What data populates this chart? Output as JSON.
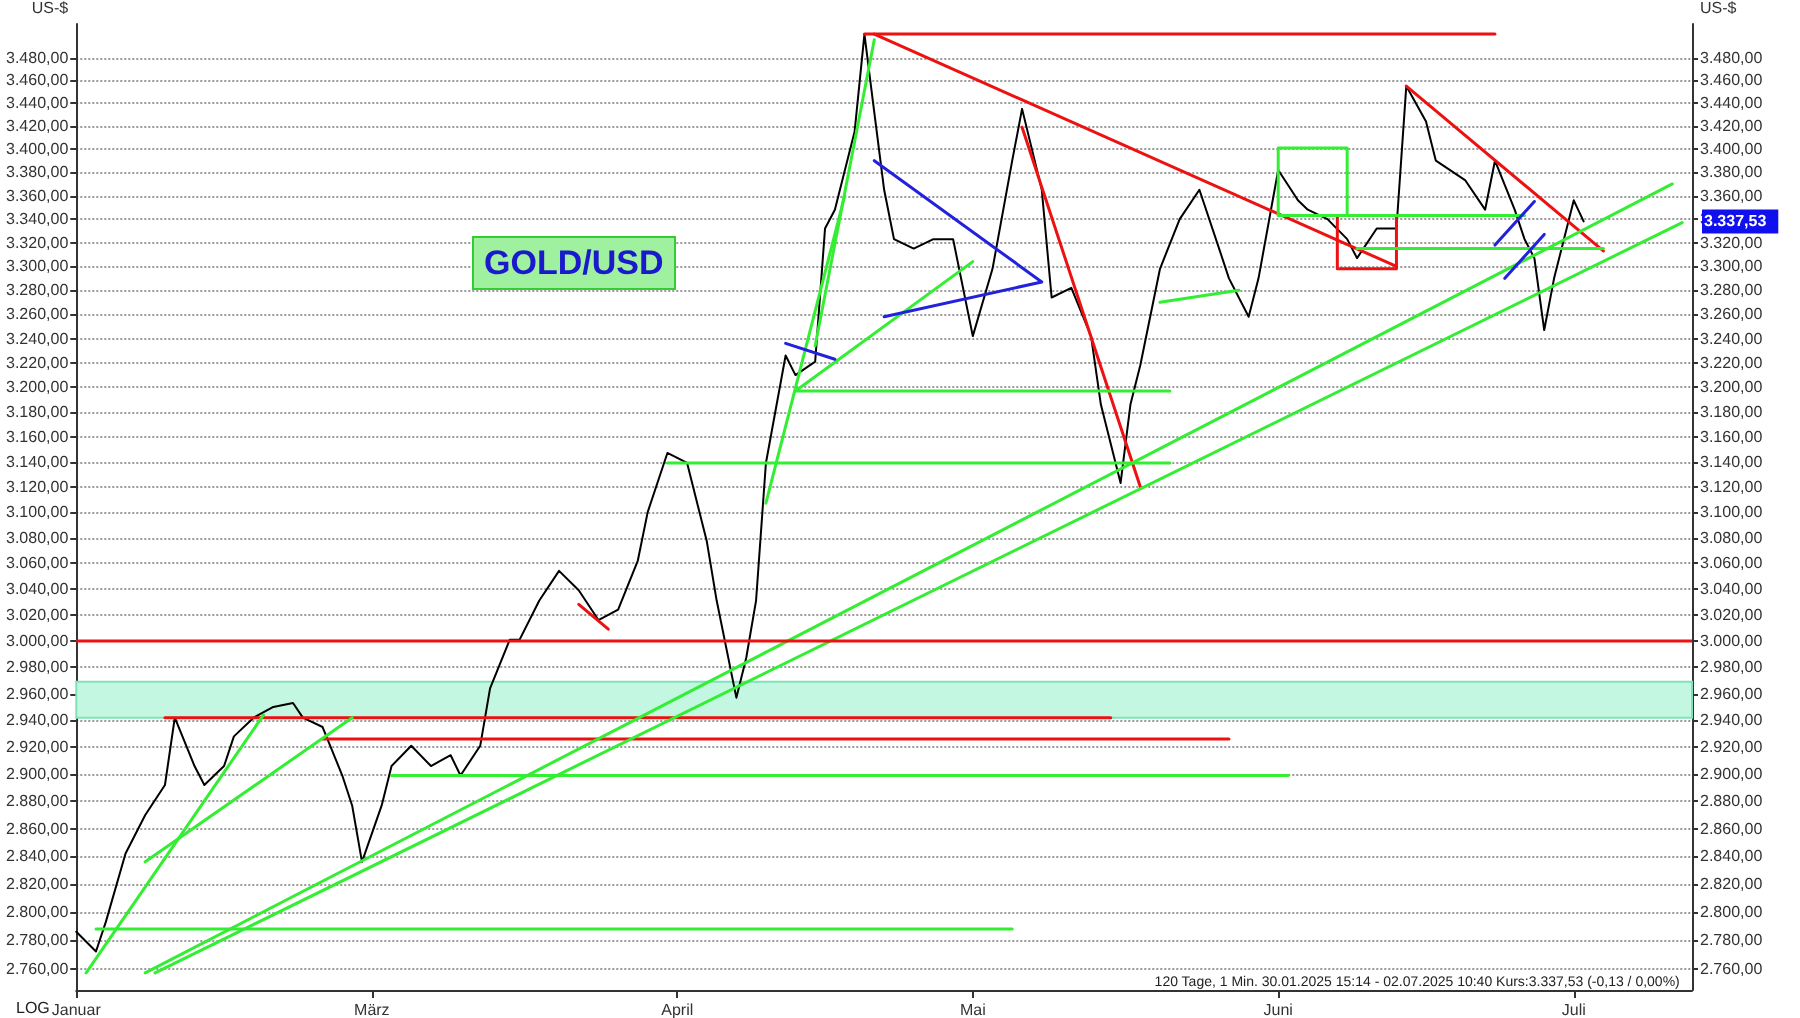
{
  "chart_data": {
    "type": "line",
    "title": "GOLD/USD",
    "ylabel": "US-$",
    "log": true,
    "grid": "y",
    "marker": "none",
    "line_style": "solid",
    "xlim": [
      "2025-01-30",
      "2025-07-13"
    ],
    "xticks": [
      {
        "value": "2025-01-30",
        "label": "Januar"
      },
      {
        "value": "2025-03-01",
        "label": "März"
      },
      {
        "value": "2025-04-01",
        "label": "April"
      },
      {
        "value": "2025-05-01",
        "label": "Mai"
      },
      {
        "value": "2025-06-01",
        "label": "Juni"
      },
      {
        "value": "2025-07-01",
        "label": "Juli"
      }
    ],
    "ylim": [
      2745,
      3510
    ],
    "yticks": [
      {
        "value": 2760,
        "label": "2.760,00"
      },
      {
        "value": 2780,
        "label": "2.780,00"
      },
      {
        "value": 2800,
        "label": "2.800,00"
      },
      {
        "value": 2820,
        "label": "2.820,00"
      },
      {
        "value": 2840,
        "label": "2.840,00"
      },
      {
        "value": 2860,
        "label": "2.860,00"
      },
      {
        "value": 2880,
        "label": "2.880,00"
      },
      {
        "value": 2900,
        "label": "2.900,00"
      },
      {
        "value": 2920,
        "label": "2.920,00"
      },
      {
        "value": 2940,
        "label": "2.940,00"
      },
      {
        "value": 2960,
        "label": "2.960,00"
      },
      {
        "value": 2980,
        "label": "2.980,00"
      },
      {
        "value": 3000,
        "label": "3.000,00"
      },
      {
        "value": 3020,
        "label": "3.020,00"
      },
      {
        "value": 3040,
        "label": "3.040,00"
      },
      {
        "value": 3060,
        "label": "3.060,00"
      },
      {
        "value": 3080,
        "label": "3.080,00"
      },
      {
        "value": 3100,
        "label": "3.100,00"
      },
      {
        "value": 3120,
        "label": "3.120,00"
      },
      {
        "value": 3140,
        "label": "3.140,00"
      },
      {
        "value": 3160,
        "label": "3.160,00"
      },
      {
        "value": 3180,
        "label": "3.180,00"
      },
      {
        "value": 3200,
        "label": "3.200,00"
      },
      {
        "value": 3220,
        "label": "3.220,00"
      },
      {
        "value": 3240,
        "label": "3.240,00"
      },
      {
        "value": 3260,
        "label": "3.260,00"
      },
      {
        "value": 3280,
        "label": "3.280,00"
      },
      {
        "value": 3300,
        "label": "3.300,00"
      },
      {
        "value": 3320,
        "label": "3.320,00"
      },
      {
        "value": 3340,
        "label": "3.340,00"
      },
      {
        "value": 3360,
        "label": "3.360,00"
      },
      {
        "value": 3380,
        "label": "3.380,00"
      },
      {
        "value": 3400,
        "label": "3.400,00"
      },
      {
        "value": 3420,
        "label": "3.420,00"
      },
      {
        "value": 3440,
        "label": "3.440,00"
      },
      {
        "value": 3460,
        "label": "3.460,00"
      },
      {
        "value": 3480,
        "label": "3.480,00"
      }
    ],
    "annotations": [
      "120 Tage, 1 Min. 30.01.2025 15:14 - 02.07.2025 10:40 Kurs:3.337,53 (-0,13 / 0,00%)",
      "LOG",
      "3.337,53"
    ],
    "ref_lines": [
      {
        "axis": "y",
        "value": 3000,
        "color": "#ee1111"
      }
    ],
    "bands": [
      {
        "axis": "y",
        "from": 2942,
        "to": 2969,
        "color": "#c4f7e2"
      }
    ],
    "series": [
      {
        "color": "#000000",
        "x": [
          "2025-01-30",
          "2025-02-01",
          "2025-02-02",
          "2025-02-04",
          "2025-02-06",
          "2025-02-08",
          "2025-02-09",
          "2025-02-11",
          "2025-02-12",
          "2025-02-14",
          "2025-02-15",
          "2025-02-17",
          "2025-02-19",
          "2025-02-21",
          "2025-02-22",
          "2025-02-24",
          "2025-02-26",
          "2025-02-27",
          "2025-02-28",
          "2025-03-02",
          "2025-03-03",
          "2025-03-05",
          "2025-03-07",
          "2025-03-09",
          "2025-03-10",
          "2025-03-12",
          "2025-03-13",
          "2025-03-15",
          "2025-03-16",
          "2025-03-18",
          "2025-03-20",
          "2025-03-22",
          "2025-03-24",
          "2025-03-26",
          "2025-03-28",
          "2025-03-29",
          "2025-03-31",
          "2025-04-02",
          "2025-04-04",
          "2025-04-05",
          "2025-04-07",
          "2025-04-08",
          "2025-04-09",
          "2025-04-10",
          "2025-04-12",
          "2025-04-13",
          "2025-04-15",
          "2025-04-16",
          "2025-04-17",
          "2025-04-19",
          "2025-04-20",
          "2025-04-21",
          "2025-04-22",
          "2025-04-23",
          "2025-04-25",
          "2025-04-27",
          "2025-04-29",
          "2025-05-01",
          "2025-05-03",
          "2025-05-05",
          "2025-05-06",
          "2025-05-08",
          "2025-05-09",
          "2025-05-11",
          "2025-05-13",
          "2025-05-14",
          "2025-05-16",
          "2025-05-17",
          "2025-05-18",
          "2025-05-20",
          "2025-05-22",
          "2025-05-24",
          "2025-05-26",
          "2025-05-27",
          "2025-05-29",
          "2025-05-30",
          "2025-06-01",
          "2025-06-03",
          "2025-06-04",
          "2025-06-06",
          "2025-06-08",
          "2025-06-09",
          "2025-06-11",
          "2025-06-13",
          "2025-06-14",
          "2025-06-16",
          "2025-06-17",
          "2025-06-20",
          "2025-06-22",
          "2025-06-23",
          "2025-06-25",
          "2025-06-26",
          "2025-06-27",
          "2025-06-28",
          "2025-06-29",
          "2025-07-01",
          "2025-07-02"
        ],
        "values": [
          2786,
          2772,
          2793,
          2842,
          2870,
          2892,
          2942,
          2906,
          2892,
          2906,
          2928,
          2942,
          2950,
          2953,
          2942,
          2935,
          2899,
          2877,
          2836,
          2877,
          2906,
          2921,
          2906,
          2914,
          2899,
          2921,
          2964,
          3001,
          3001,
          3031,
          3054,
          3039,
          3016,
          3024,
          3062,
          3100,
          3147,
          3139,
          3077,
          3031,
          2957,
          2987,
          3031,
          3139,
          3226,
          3210,
          3221,
          3332,
          3348,
          3415,
          3501,
          3432,
          3365,
          3323,
          3315,
          3323,
          3323,
          3242,
          3298,
          3390,
          3435,
          3365,
          3274,
          3282,
          3242,
          3186,
          3123,
          3186,
          3218,
          3298,
          3340,
          3365,
          3315,
          3290,
          3258,
          3290,
          3382,
          3356,
          3348,
          3340,
          3323,
          3307,
          3332,
          3332,
          3455,
          3424,
          3390,
          3373,
          3348,
          3390,
          3348,
          3323,
          3307,
          3247,
          3290,
          3356,
          3338
        ]
      },
      {
        "color": "#ee1111",
        "x": [
          "2025-04-20",
          "2025-06-23"
        ],
        "values": [
          3501,
          3501
        ]
      },
      {
        "color": "#ee1111",
        "x": [
          "2025-02-08",
          "2025-05-15"
        ],
        "values": [
          2942,
          2942
        ]
      },
      {
        "color": "#ee1111",
        "x": [
          "2025-02-24",
          "2025-05-27"
        ],
        "values": [
          2926,
          2926
        ]
      },
      {
        "color": "#ee1111",
        "x": [
          "2025-04-21",
          "2025-06-13"
        ],
        "values": [
          3501,
          3300
        ]
      },
      {
        "color": "#ee1111",
        "x": [
          "2025-05-06",
          "2025-05-18"
        ],
        "values": [
          3419,
          3120
        ]
      },
      {
        "color": "#ee1111",
        "x": [
          "2025-06-14",
          "2025-07-04"
        ],
        "values": [
          3455,
          3313
        ]
      },
      {
        "color": "#ee1111",
        "x": [
          "2025-03-22",
          "2025-03-25"
        ],
        "values": [
          3028,
          3009
        ]
      },
      {
        "color": "#ee1111",
        "x": [
          "2025-06-07",
          "2025-06-07",
          "2025-06-13",
          "2025-06-13"
        ],
        "values": [
          3343,
          3298,
          3298,
          3343
        ]
      },
      {
        "color": "#33ee33",
        "x": [
          "2025-02-01",
          "2025-05-05"
        ],
        "values": [
          2788,
          2788
        ]
      },
      {
        "color": "#33ee33",
        "x": [
          "2025-03-03",
          "2025-06-02"
        ],
        "values": [
          2899,
          2899
        ]
      },
      {
        "color": "#33ee33",
        "x": [
          "2025-04-13",
          "2025-05-21"
        ],
        "values": [
          3197,
          3197
        ]
      },
      {
        "color": "#33ee33",
        "x": [
          "2025-03-31",
          "2025-05-21"
        ],
        "values": [
          3139,
          3139
        ]
      },
      {
        "color": "#33ee33",
        "x": [
          "2025-05-20",
          "2025-05-28"
        ],
        "values": [
          3270,
          3280
        ]
      },
      {
        "color": "#33ee33",
        "x": [
          "2025-06-01",
          "2025-06-26"
        ],
        "values": [
          3343,
          3343
        ]
      },
      {
        "color": "#33ee33",
        "x": [
          "2025-06-09",
          "2025-07-04"
        ],
        "values": [
          3315,
          3315
        ]
      },
      {
        "color": "#33ee33",
        "x": [
          "2025-06-01",
          "2025-06-01",
          "2025-06-08",
          "2025-06-08"
        ],
        "values": [
          3343,
          3401,
          3401,
          3343
        ]
      },
      {
        "color": "#33ee33",
        "x": [
          "2025-02-06",
          "2025-07-11"
        ],
        "values": [
          2757,
          3370
        ]
      },
      {
        "color": "#33ee33",
        "x": [
          "2025-02-07",
          "2025-07-12"
        ],
        "values": [
          2757,
          3337
        ]
      },
      {
        "color": "#33ee33",
        "x": [
          "2025-01-31",
          "2025-02-18"
        ],
        "values": [
          2757,
          2944
        ]
      },
      {
        "color": "#33ee33",
        "x": [
          "2025-02-06",
          "2025-02-27"
        ],
        "values": [
          2836,
          2942
        ]
      },
      {
        "color": "#33ee33",
        "x": [
          "2025-04-10",
          "2025-04-18"
        ],
        "values": [
          3107,
          3360
        ]
      },
      {
        "color": "#33ee33",
        "x": [
          "2025-04-15",
          "2025-04-21"
        ],
        "values": [
          3234,
          3496
        ]
      },
      {
        "color": "#33ee33",
        "x": [
          "2025-04-13",
          "2025-05-01"
        ],
        "values": [
          3197,
          3304
        ]
      },
      {
        "color": "#2222dd",
        "x": [
          "2025-04-21",
          "2025-05-08",
          "2025-04-22"
        ],
        "values": [
          3390,
          3287,
          3258
        ]
      },
      {
        "color": "#2222dd",
        "x": [
          "2025-04-12",
          "2025-04-17"
        ],
        "values": [
          3236,
          3223
        ]
      },
      {
        "color": "#2222dd",
        "x": [
          "2025-06-23",
          "2025-06-27"
        ],
        "values": [
          3318,
          3355
        ]
      },
      {
        "color": "#2222dd",
        "x": [
          "2025-06-24",
          "2025-06-28"
        ],
        "values": [
          3290,
          3327
        ]
      }
    ]
  }
}
